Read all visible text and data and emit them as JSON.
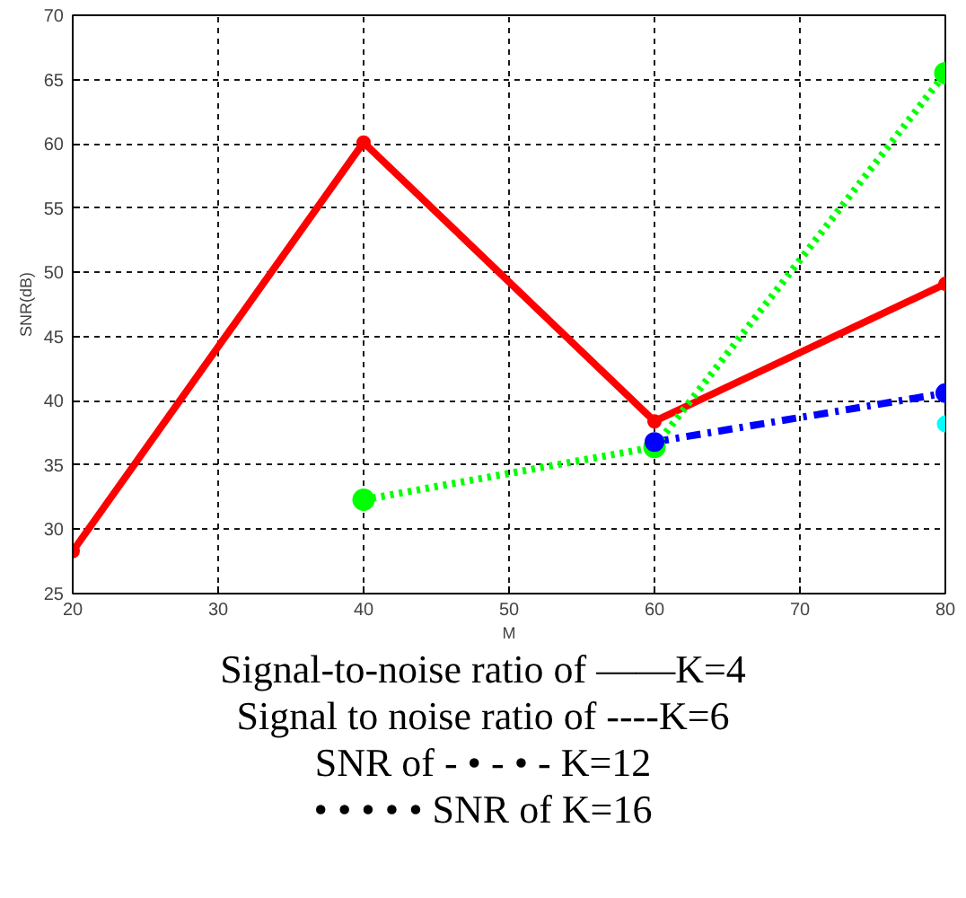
{
  "chart_data": {
    "type": "line",
    "xlabel": "M",
    "ylabel": "SNR(dB)",
    "x": [
      20,
      40,
      60,
      80
    ],
    "xlim": [
      20,
      80
    ],
    "xticks": [
      20,
      30,
      40,
      50,
      60,
      70,
      80
    ],
    "ylim": [
      25,
      70
    ],
    "yticks": [
      25,
      30,
      35,
      40,
      45,
      50,
      55,
      60,
      65,
      70
    ],
    "grid": true,
    "marker": "circle",
    "series": [
      {
        "color": "#ff0000",
        "line_style": "solid",
        "values": [
          28.3,
          60.1,
          38.4,
          49.1
        ]
      },
      {
        "color": "#00ffff",
        "line_style": "dashed",
        "values": [
          null,
          null,
          null,
          38.2
        ]
      },
      {
        "color": "#0000ff",
        "line_style": "dashdot",
        "values": [
          null,
          null,
          36.8,
          40.6
        ]
      },
      {
        "color": "#00ff00",
        "line_style": "dotted",
        "values": [
          null,
          32.3,
          36.4,
          65.5
        ]
      }
    ],
    "annotations": [
      "Signal-to-noise ratio of ——K=4",
      "Signal to noise ratio of ----K=6",
      "SNR of - • - • - K=12",
      "• • • • • SNR of K=16"
    ]
  }
}
